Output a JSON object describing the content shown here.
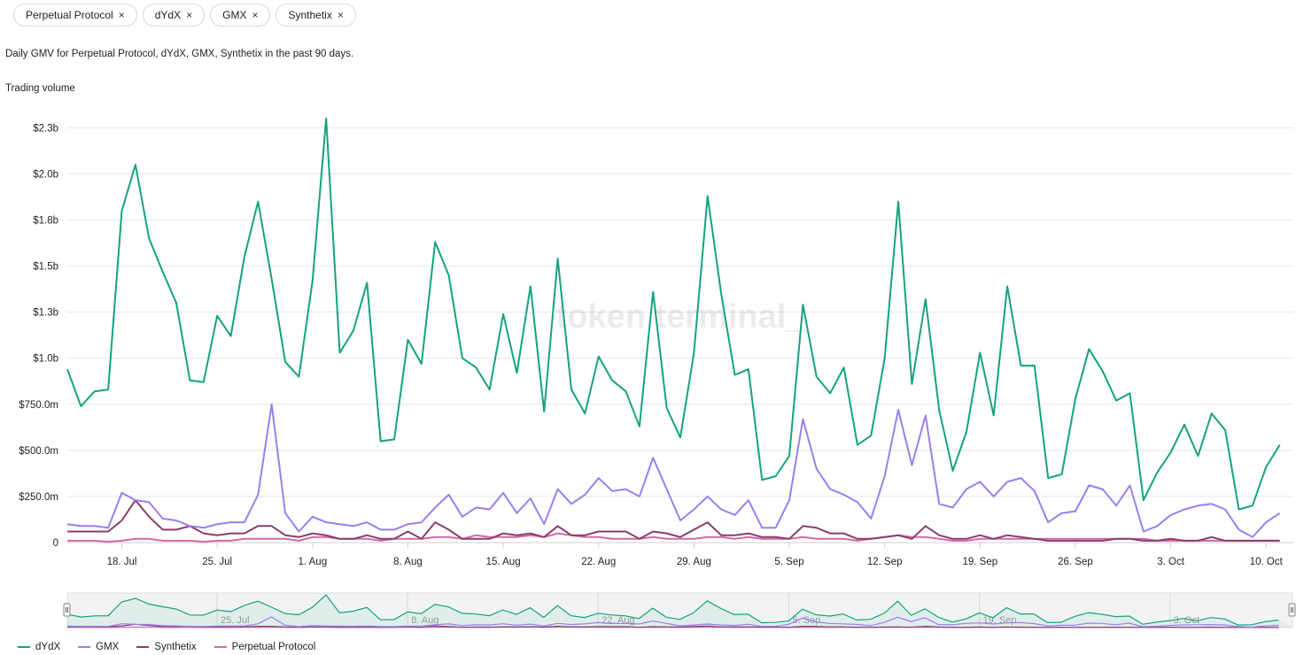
{
  "filters": [
    {
      "label": "Perpetual Protocol",
      "close": "×"
    },
    {
      "label": "dYdX",
      "close": "×"
    },
    {
      "label": "GMX",
      "close": "×"
    },
    {
      "label": "Synthetix",
      "close": "×"
    }
  ],
  "description": "Daily GMV for Perpetual Protocol, dYdX, GMX, Synthetix in the past 90 days.",
  "watermark": "token terminal_",
  "chart_data": {
    "type": "line",
    "title": "Daily GMV for Perpetual Protocol, dYdX, GMX, Synthetix in the past 90 days.",
    "ylabel": "Trading volume",
    "xlabel": "",
    "ylim": [
      0,
      2300000000
    ],
    "y_ticks": [
      0,
      250000000,
      500000000,
      750000000,
      1000000000,
      1250000000,
      1500000000,
      1750000000,
      2000000000,
      2250000000
    ],
    "y_tick_labels": [
      "0",
      "$250.0m",
      "$500.0m",
      "$750.0m",
      "$1.0b",
      "$1.3b",
      "$1.5b",
      "$1.8b",
      "$2.0b",
      "$2.3b"
    ],
    "x_start_day": 0,
    "x_days": 91,
    "x_ticks": [
      {
        "day": 4,
        "label": "18. Jul"
      },
      {
        "day": 11,
        "label": "25. Jul"
      },
      {
        "day": 18,
        "label": "1. Aug"
      },
      {
        "day": 25,
        "label": "8. Aug"
      },
      {
        "day": 32,
        "label": "15. Aug"
      },
      {
        "day": 39,
        "label": "22. Aug"
      },
      {
        "day": 46,
        "label": "29. Aug"
      },
      {
        "day": 53,
        "label": "5. Sep"
      },
      {
        "day": 60,
        "label": "12. Sep"
      },
      {
        "day": 67,
        "label": "19. Sep"
      },
      {
        "day": 74,
        "label": "26. Sep"
      },
      {
        "day": 81,
        "label": "3. Oct"
      },
      {
        "day": 88,
        "label": "10. Oct"
      }
    ],
    "navigator_ticks": [
      {
        "day": 11,
        "label": "25. Jul"
      },
      {
        "day": 25,
        "label": "8. Aug"
      },
      {
        "day": 39,
        "label": "22. Aug"
      },
      {
        "day": 53,
        "label": "5. Sep"
      },
      {
        "day": 67,
        "label": "19. Sep"
      },
      {
        "day": 81,
        "label": "3. Oct"
      }
    ],
    "series": [
      {
        "name": "dYdX",
        "color": "#14a37f",
        "values": [
          940,
          740,
          820,
          830,
          1800,
          2050,
          1650,
          1470,
          1300,
          880,
          870,
          1230,
          1120,
          1550,
          1850,
          1430,
          980,
          900,
          1420,
          2300,
          1030,
          1150,
          1410,
          550,
          560,
          1100,
          970,
          1630,
          1450,
          1000,
          950,
          830,
          1240,
          920,
          1390,
          710,
          1540,
          830,
          700,
          1010,
          880,
          820,
          630,
          1360,
          730,
          570,
          1030,
          1880,
          1350,
          910,
          940,
          340,
          360,
          470,
          1290,
          900,
          810,
          950,
          530,
          580,
          1000,
          1850,
          860,
          1320,
          720,
          390,
          600,
          1030,
          690,
          1390,
          960,
          960,
          350,
          370,
          780,
          1050,
          930,
          770,
          810,
          230,
          380,
          490,
          640,
          470,
          700,
          610,
          180,
          200,
          410,
          530
        ]
      },
      {
        "name": "GMX",
        "color": "#9b7ff0",
        "values": [
          100,
          90,
          90,
          80,
          270,
          230,
          220,
          130,
          120,
          90,
          80,
          100,
          110,
          110,
          260,
          750,
          160,
          60,
          140,
          110,
          100,
          90,
          110,
          70,
          70,
          100,
          110,
          190,
          260,
          140,
          190,
          180,
          270,
          160,
          240,
          100,
          290,
          210,
          260,
          350,
          280,
          290,
          250,
          460,
          290,
          120,
          180,
          250,
          180,
          150,
          230,
          80,
          80,
          230,
          670,
          400,
          290,
          260,
          220,
          130,
          360,
          720,
          420,
          690,
          210,
          190,
          290,
          330,
          250,
          330,
          350,
          280,
          110,
          160,
          170,
          310,
          290,
          200,
          310,
          60,
          90,
          150,
          180,
          200,
          210,
          180,
          70,
          30,
          110,
          160
        ]
      },
      {
        "name": "Synthetix",
        "color": "#8a3d6f",
        "values": [
          60,
          60,
          60,
          60,
          120,
          230,
          140,
          70,
          70,
          90,
          50,
          40,
          50,
          50,
          90,
          90,
          40,
          30,
          50,
          40,
          20,
          20,
          40,
          20,
          20,
          60,
          20,
          110,
          70,
          20,
          20,
          20,
          50,
          40,
          50,
          30,
          90,
          40,
          40,
          60,
          60,
          60,
          20,
          60,
          50,
          30,
          70,
          110,
          40,
          40,
          50,
          30,
          30,
          20,
          90,
          80,
          50,
          50,
          20,
          20,
          30,
          40,
          20,
          90,
          40,
          20,
          20,
          40,
          20,
          40,
          30,
          20,
          10,
          10,
          10,
          10,
          10,
          20,
          20,
          10,
          10,
          20,
          10,
          10,
          30,
          10,
          10,
          10,
          10,
          10
        ]
      },
      {
        "name": "Perpetual Protocol",
        "color": "#d16aa8",
        "values": [
          10,
          10,
          10,
          5,
          10,
          20,
          20,
          10,
          10,
          10,
          5,
          10,
          10,
          20,
          20,
          20,
          20,
          10,
          30,
          30,
          20,
          20,
          20,
          10,
          20,
          20,
          20,
          30,
          30,
          20,
          40,
          30,
          30,
          30,
          40,
          30,
          50,
          40,
          30,
          30,
          20,
          20,
          20,
          30,
          20,
          20,
          20,
          30,
          30,
          20,
          30,
          20,
          20,
          20,
          30,
          20,
          20,
          20,
          10,
          20,
          30,
          40,
          30,
          30,
          20,
          10,
          10,
          20,
          20,
          20,
          20,
          20,
          20,
          20,
          20,
          20,
          20,
          20,
          20,
          20,
          10,
          10,
          10,
          10,
          10,
          10,
          10,
          10,
          10,
          10
        ]
      }
    ]
  }
}
